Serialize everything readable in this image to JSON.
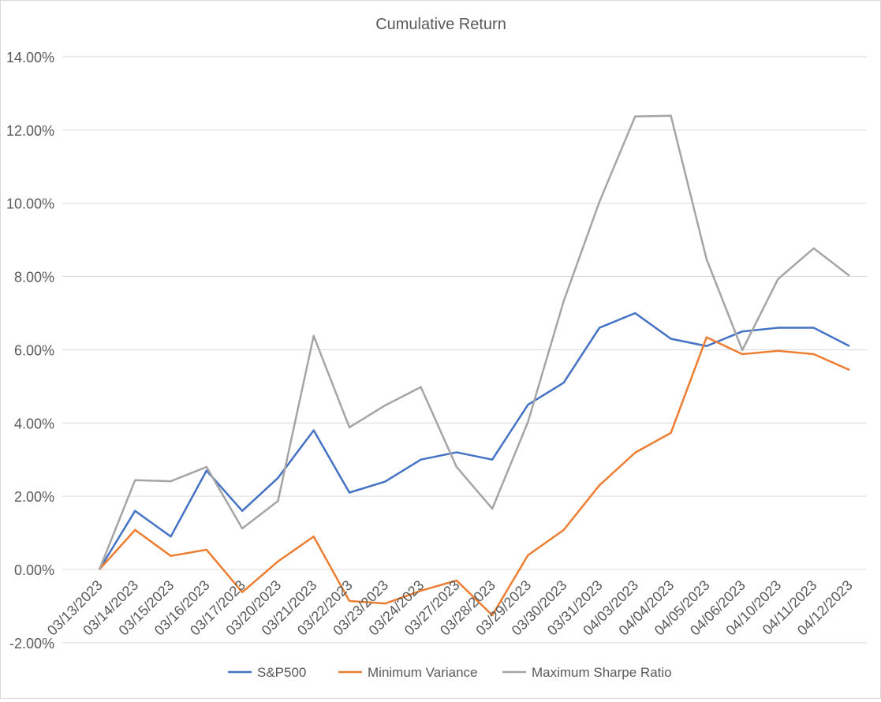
{
  "chart_data": {
    "type": "line",
    "title": "Cumulative Return",
    "xlabel": "",
    "ylabel": "",
    "ylim": [
      -2,
      14
    ],
    "yticks": [
      -2,
      0,
      2,
      4,
      6,
      8,
      10,
      12,
      14
    ],
    "ytick_labels": [
      "-2.00%",
      "0.00%",
      "2.00%",
      "4.00%",
      "6.00%",
      "8.00%",
      "10.00%",
      "12.00%",
      "14.00%"
    ],
    "grid": true,
    "legend_position": "bottom",
    "categories": [
      "03/13/2023",
      "03/14/2023",
      "03/15/2023",
      "03/16/2023",
      "03/17/2023",
      "03/20/2023",
      "03/21/2023",
      "03/22/2023",
      "03/23/2023",
      "03/24/2023",
      "03/27/2023",
      "03/28/2023",
      "03/29/2023",
      "03/30/2023",
      "03/31/2023",
      "04/03/2023",
      "04/04/2023",
      "04/05/2023",
      "04/06/2023",
      "04/10/2023",
      "04/11/2023",
      "04/12/2023"
    ],
    "series": [
      {
        "name": "S&P500",
        "color": "#4472c4",
        "values": [
          0,
          1.6,
          0.9,
          2.7,
          1.6,
          2.5,
          3.8,
          2.1,
          2.4,
          3.0,
          3.2,
          3.0,
          4.5,
          5.1,
          6.6,
          7.0,
          6.3,
          6.1,
          6.5,
          6.6,
          6.6,
          6.1
        ]
      },
      {
        "name": "Minimum Variance",
        "color": "#ed7d31",
        "values": [
          0,
          1.08,
          0.37,
          0.54,
          -0.62,
          0.22,
          0.9,
          -0.86,
          -0.93,
          -0.58,
          -0.3,
          -1.25,
          0.39,
          1.08,
          2.3,
          3.19,
          3.73,
          6.34,
          5.88,
          5.97,
          5.88,
          5.45
        ]
      },
      {
        "name": "Maximum Sharpe Ratio",
        "color": "#a5a5a5",
        "values": [
          0,
          2.44,
          2.41,
          2.8,
          1.12,
          1.87,
          6.38,
          3.88,
          4.48,
          4.98,
          2.8,
          1.66,
          4.03,
          7.33,
          10.04,
          12.37,
          12.39,
          8.47,
          5.99,
          7.93,
          8.77,
          8.02
        ]
      }
    ]
  }
}
